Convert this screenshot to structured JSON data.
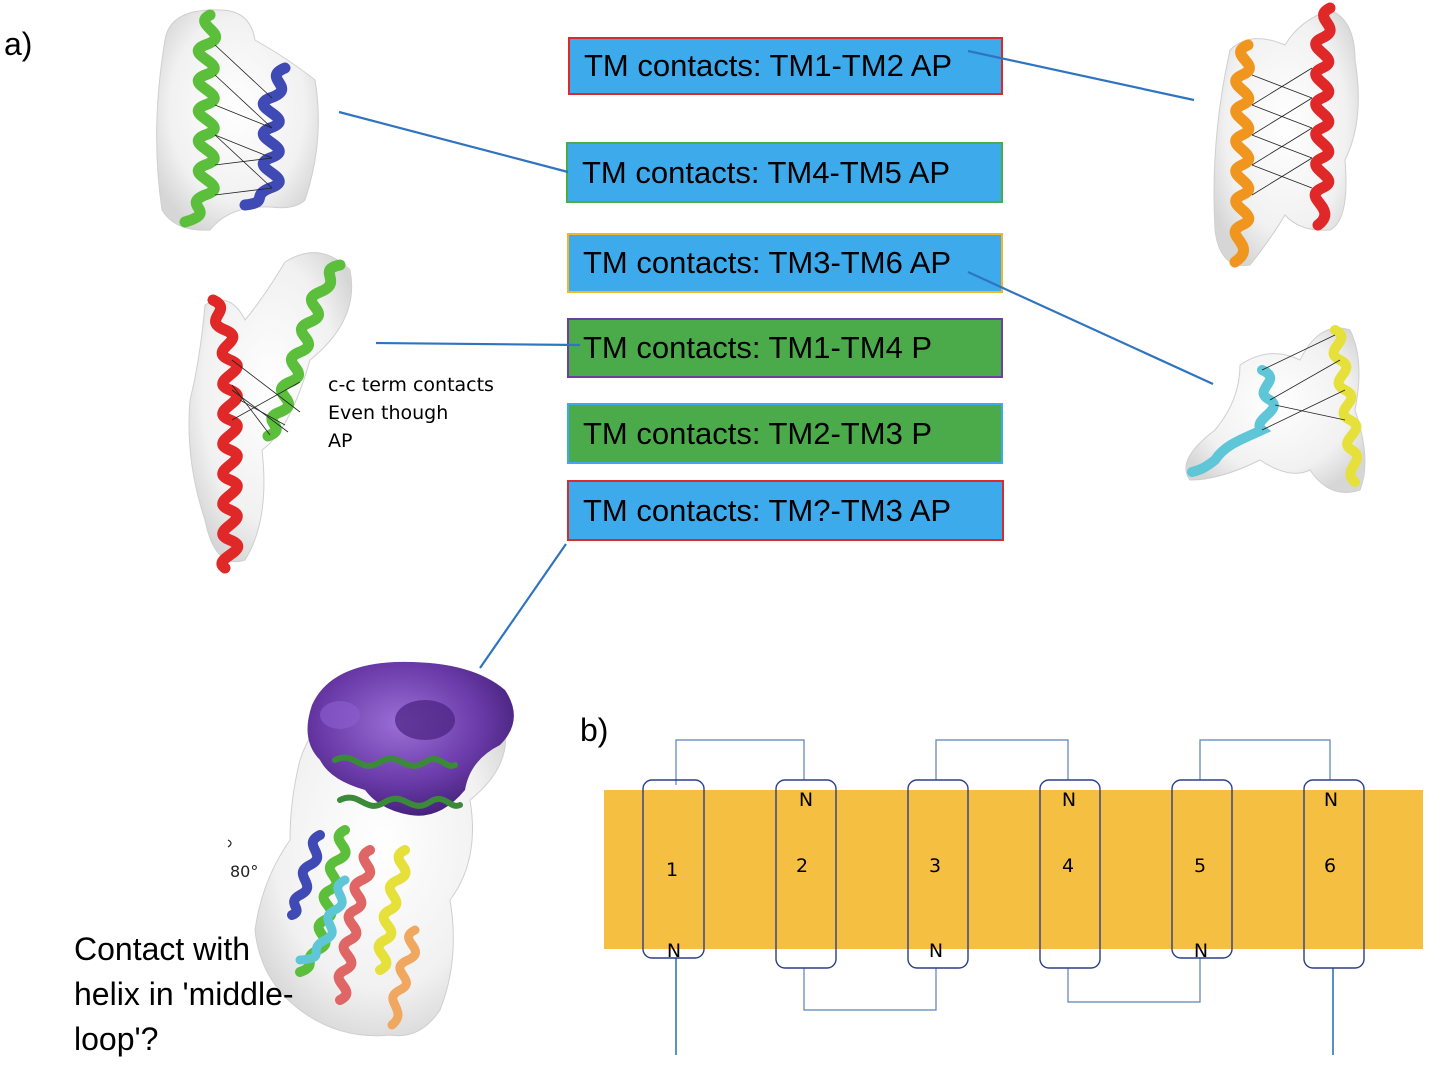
{
  "panel_a_label": "a)",
  "panel_b_label": "b)",
  "contact_boxes": [
    {
      "label": "TM contacts: TM1-TM2 AP",
      "fill": "#3daaeb",
      "border": "#d92b2b"
    },
    {
      "label": "TM contacts: TM4-TM5 AP",
      "fill": "#3daaeb",
      "border": "#4bab4a"
    },
    {
      "label": "TM contacts: TM3-TM6 AP",
      "fill": "#3daaeb",
      "border": "#f0b62c"
    },
    {
      "label": "TM contacts: TM1-TM4 P",
      "fill": "#4bab4a",
      "border": "#6d3fa0"
    },
    {
      "label": "TM contacts: TM2-TM3 P",
      "fill": "#4bab4a",
      "border": "#3daaeb"
    },
    {
      "label": "TM contacts: TM?-TM3 AP",
      "fill": "#3daaeb",
      "border": "#d92b2b"
    }
  ],
  "cc_note": [
    "c-c term contacts",
    "Even though",
    "AP"
  ],
  "middle_loop_note": [
    "Contact with",
    "helix in 'middle-",
    "loop'?"
  ],
  "rotation_label": "80°",
  "topology": {
    "membrane_color": "#f5bf42",
    "helices": [
      {
        "number": "1",
        "n_label": "N"
      },
      {
        "number": "2",
        "n_label": "N"
      },
      {
        "number": "3",
        "n_label": "N"
      },
      {
        "number": "4",
        "n_label": "N"
      },
      {
        "number": "5",
        "n_label": "N"
      },
      {
        "number": "6",
        "n_label": "N"
      }
    ]
  },
  "colors": {
    "connector": "#2f74c0",
    "helix_green": "#5bbf3b",
    "helix_blue": "#3f4ab5",
    "helix_red": "#e02828",
    "helix_orange": "#f0961e",
    "helix_cyan": "#5fc6d8",
    "helix_yellow": "#e6e03a",
    "density_purple": "#6a3aa8"
  }
}
